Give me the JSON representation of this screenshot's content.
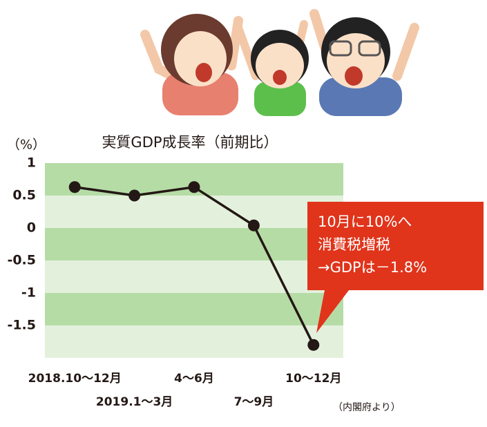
{
  "chart_data": {
    "type": "line",
    "title": "実質GDP成長率（前期比）",
    "y_label": "（%）",
    "categories": [
      "2018.10～12月",
      "2019.1～3月",
      "4～6月",
      "7～9月",
      "10～12月"
    ],
    "values": [
      0.63,
      0.5,
      0.63,
      0.04,
      -1.8
    ],
    "color": "#231815",
    "ylim": [
      -2,
      1
    ],
    "yticks": [
      1,
      0.5,
      0,
      -0.5,
      -1,
      -1.5
    ],
    "grid": true,
    "annotation": [
      "10月に10%へ",
      "消費税増税",
      "→GDPは－1.8%"
    ],
    "source": "（内閣府より）"
  }
}
